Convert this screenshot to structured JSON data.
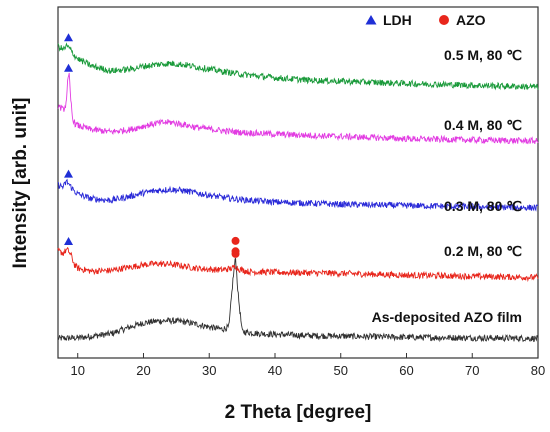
{
  "chart_data": {
    "type": "line",
    "xlabel": "2 Theta [degree]",
    "ylabel": "Intensity [arb. unit]",
    "xlim": [
      7,
      80
    ],
    "xticks": [
      10,
      20,
      30,
      40,
      50,
      60,
      70,
      80
    ],
    "yticks_shown": false,
    "legend": {
      "placement": "top-right",
      "entries": [
        {
          "label": "LDH",
          "marker": "triangle",
          "color": "#1f2fd6"
        },
        {
          "label": "AZO",
          "marker": "circle",
          "color": "#e8261c"
        }
      ]
    },
    "series": [
      {
        "name": "As-deposited AZO film",
        "color": "#303030",
        "offset": 0,
        "x": [
          7,
          10,
          15,
          18,
          20,
          22,
          24,
          26,
          28,
          30,
          32,
          33,
          33.6,
          34.0,
          34.4,
          35,
          37,
          40,
          45,
          50,
          60,
          70,
          80
        ],
        "y": [
          0.4,
          0.5,
          1.2,
          2.4,
          3.1,
          3.4,
          3.5,
          3.3,
          2.9,
          2.4,
          2.0,
          2.4,
          10.5,
          14.5,
          8.0,
          1.6,
          1.3,
          1.1,
          0.9,
          0.8,
          0.6,
          0.5,
          0.4
        ],
        "markers": []
      },
      {
        "name": "0.2 M, 80 ℃",
        "color": "#e8261c",
        "offset": 11,
        "x": [
          7,
          7.8,
          8.3,
          8.6,
          9.0,
          9.5,
          10,
          12,
          15,
          18,
          20,
          22,
          24,
          26,
          28,
          30,
          32,
          33.6,
          34.0,
          34.4,
          36,
          40,
          45,
          50,
          60,
          70,
          80
        ],
        "y": [
          4.6,
          4.2,
          4.8,
          4.6,
          3.8,
          2.2,
          1.6,
          1.1,
          1.2,
          1.8,
          2.2,
          2.4,
          2.3,
          2.0,
          1.6,
          1.4,
          1.3,
          1.6,
          2.0,
          1.5,
          1.0,
          0.9,
          0.8,
          0.7,
          0.4,
          0.2,
          0.0
        ],
        "markers": [
          {
            "type": "LDH",
            "x": 8.6
          },
          {
            "type": "AZO",
            "x": 34.0
          },
          {
            "type": "AZO",
            "x": 34.0
          }
        ]
      },
      {
        "name": "0.3 M, 80 ℃",
        "color": "#2a2ad8",
        "offset": 23.5,
        "x": [
          7,
          7.8,
          8.3,
          8.6,
          9.0,
          9.5,
          10,
          12,
          15,
          18,
          20,
          22,
          24,
          26,
          28,
          30,
          32,
          35,
          40,
          45,
          50,
          60,
          70,
          80
        ],
        "y": [
          3.6,
          3.2,
          4.2,
          3.8,
          3.2,
          2.5,
          2.0,
          1.2,
          0.9,
          1.6,
          2.2,
          2.6,
          2.8,
          2.6,
          2.2,
          1.8,
          1.4,
          1.0,
          0.6,
          0.4,
          0.2,
          0.0,
          -0.2,
          -0.4
        ],
        "markers": [
          {
            "type": "LDH",
            "x": 8.6
          }
        ]
      },
      {
        "name": "0.4 M, 80 ℃",
        "color": "#e23ce2",
        "offset": 35.5,
        "x": [
          7,
          7.8,
          8.2,
          8.5,
          8.7,
          8.9,
          9.2,
          9.6,
          10,
          12,
          15,
          18,
          20,
          22,
          24,
          26,
          28,
          30,
          32,
          35,
          40,
          45,
          50,
          60,
          70,
          80
        ],
        "y": [
          5.4,
          4.6,
          5.5,
          9.8,
          10.6,
          7.0,
          3.2,
          2.2,
          1.9,
          1.2,
          0.8,
          1.2,
          1.8,
          2.3,
          2.5,
          2.1,
          1.6,
          1.3,
          1.0,
          0.7,
          0.4,
          0.2,
          0.0,
          -0.4,
          -0.6,
          -0.8
        ],
        "markers": [
          {
            "type": "LDH",
            "x": 8.6
          }
        ]
      },
      {
        "name": "0.5 M, 80 ℃",
        "color": "#1a9a3a",
        "offset": 46,
        "x": [
          7,
          7.8,
          8.3,
          8.6,
          9.0,
          9.5,
          10,
          12,
          15,
          18,
          20,
          22,
          24,
          26,
          28,
          30,
          32,
          35,
          40,
          45,
          50,
          60,
          70,
          80
        ],
        "y": [
          5.2,
          4.6,
          5.2,
          5.0,
          4.4,
          3.6,
          3.0,
          1.8,
          0.9,
          1.2,
          1.7,
          2.0,
          2.2,
          2.0,
          1.6,
          1.2,
          0.8,
          0.3,
          -0.3,
          -0.7,
          -0.9,
          -1.3,
          -1.6,
          -1.9
        ],
        "markers": [
          {
            "type": "LDH",
            "x": 8.6
          }
        ]
      }
    ]
  }
}
